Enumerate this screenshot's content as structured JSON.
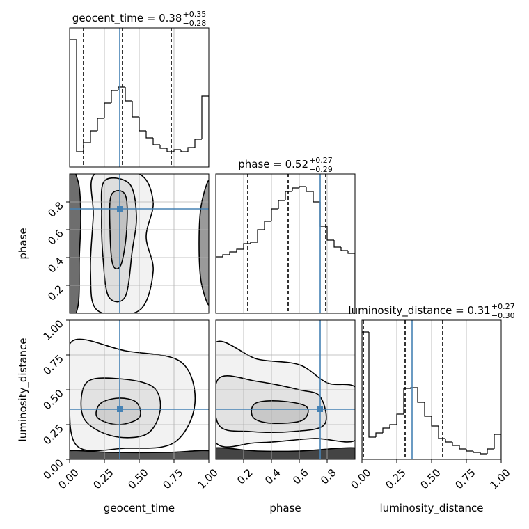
{
  "chart_data": {
    "type": "corner",
    "grid": true,
    "truth_color": "#4682b4",
    "parameters": [
      {
        "name": "geocent_time",
        "xlim": [
          0,
          1
        ],
        "truth": 0.36,
        "ticks": [
          {
            "value": 0,
            "label": "0.00"
          },
          {
            "value": 0.25,
            "label": "0.25"
          },
          {
            "value": 0.5,
            "label": "0.50"
          },
          {
            "value": 0.75,
            "label": "0.75"
          },
          {
            "value": 1,
            "label": "1.00"
          }
        ]
      },
      {
        "name": "phase",
        "xlim": [
          0,
          1
        ],
        "truth": 0.75,
        "ticks": [
          0.2,
          0.4,
          0.6,
          0.8
        ]
      },
      {
        "name": "luminosity_distance",
        "xlim": [
          0,
          1
        ],
        "truth": 0.36,
        "ticks": [
          {
            "value": 0,
            "label": "0.00"
          },
          {
            "value": 0.25,
            "label": "0.25"
          },
          {
            "value": 0.5,
            "label": "0.50"
          },
          {
            "value": 0.75,
            "label": "0.75"
          },
          {
            "value": 1,
            "label": "1.00"
          }
        ]
      }
    ],
    "histograms": [
      {
        "title": "geocent_time = 0.38",
        "sup": "+0.35",
        "sub": "−0.28",
        "ylim": [
          0,
          200
        ],
        "bins": [
          0,
          0.05,
          0.1,
          0.15,
          0.2,
          0.25,
          0.3,
          0.35,
          0.4,
          0.45,
          0.5,
          0.55,
          0.6,
          0.65,
          0.7,
          0.75,
          0.8,
          0.85,
          0.9,
          0.95,
          1
        ],
        "counts": [
          183,
          22,
          35,
          52,
          70,
          92,
          110,
          115,
          95,
          72,
          52,
          42,
          32,
          27,
          22,
          25,
          22,
          28,
          40,
          102
        ],
        "quantiles": [
          0.1,
          0.38,
          0.73
        ]
      },
      {
        "title": "phase = 0.52",
        "sup": "+0.27",
        "sub": "−0.29",
        "ylim": [
          0,
          200
        ],
        "bins": [
          0,
          0.05,
          0.1,
          0.15,
          0.2,
          0.25,
          0.3,
          0.35,
          0.4,
          0.45,
          0.5,
          0.55,
          0.6,
          0.65,
          0.7,
          0.75,
          0.8,
          0.85,
          0.9,
          0.95,
          1
        ],
        "counts": [
          81,
          84,
          88,
          92,
          100,
          102,
          120,
          132,
          150,
          162,
          175,
          180,
          182,
          175,
          160,
          125,
          105,
          95,
          90,
          86
        ],
        "quantiles": [
          0.23,
          0.52,
          0.79
        ]
      },
      {
        "title": "luminosity_distance = 0.31",
        "sup": "+0.27",
        "sub": "−0.30",
        "ylim": [
          0,
          200
        ],
        "bins": [
          0,
          0.05,
          0.1,
          0.15,
          0.2,
          0.25,
          0.3,
          0.35,
          0.4,
          0.45,
          0.5,
          0.55,
          0.6,
          0.65,
          0.7,
          0.75,
          0.8,
          0.85,
          0.9,
          0.95,
          1
        ],
        "counts": [
          183,
          32,
          38,
          45,
          50,
          65,
          102,
          103,
          82,
          62,
          48,
          30,
          25,
          20,
          15,
          12,
          10,
          8,
          15,
          36
        ],
        "quantiles": [
          0.01,
          0.31,
          0.58
        ]
      }
    ],
    "panels": [
      {
        "x": 0,
        "y": 1,
        "contours": [
          {
            "color": "#f2f2f2",
            "x": [
              0.18,
              0.5,
              0.6,
              0.55,
              0.6,
              0.5,
              0.2,
              0.15,
              0.17
            ],
            "y": [
              1.0,
              1.0,
              0.8,
              0.55,
              0.3,
              0.02,
              0.02,
              0.3,
              0.7
            ]
          },
          {
            "color": "#dedede",
            "x": [
              0.25,
              0.43,
              0.48,
              0.45,
              0.4,
              0.28,
              0.24,
              0.23
            ],
            "y": [
              0.95,
              0.93,
              0.7,
              0.45,
              0.12,
              0.12,
              0.4,
              0.7
            ]
          },
          {
            "color": "#c2c2c2",
            "x": [
              0.3,
              0.4,
              0.41,
              0.37,
              0.31,
              0.29
            ],
            "y": [
              0.85,
              0.85,
              0.6,
              0.35,
              0.35,
              0.6
            ]
          },
          {
            "color": "#6e6e6e",
            "x": [
              -0.02,
              0.06,
              0.08,
              0.07,
              0.06,
              -0.02
            ],
            "y": [
              1.02,
              0.95,
              0.7,
              0.4,
              0.05,
              -0.02
            ]
          },
          {
            "color": "#9a9a9a",
            "x": [
              1.02,
              0.95,
              0.93,
              0.95,
              1.02
            ],
            "y": [
              0.92,
              0.8,
              0.5,
              0.2,
              0.1
            ]
          }
        ]
      },
      {
        "x": 0,
        "y": 2,
        "contours": [
          {
            "color": "#f2f2f2",
            "x": [
              0.02,
              0.4,
              0.8,
              0.9,
              0.75,
              0.4,
              0.05,
              0.0
            ],
            "y": [
              0.85,
              0.78,
              0.7,
              0.4,
              0.12,
              0.08,
              0.1,
              0.5
            ]
          },
          {
            "color": "#e2e2e2",
            "x": [
              0.12,
              0.35,
              0.6,
              0.65,
              0.55,
              0.3,
              0.1
            ],
            "y": [
              0.55,
              0.58,
              0.52,
              0.35,
              0.18,
              0.17,
              0.3
            ]
          },
          {
            "color": "#cfcfcf",
            "x": [
              0.22,
              0.35,
              0.48,
              0.5,
              0.35,
              0.2
            ],
            "y": [
              0.4,
              0.44,
              0.41,
              0.3,
              0.25,
              0.3
            ]
          },
          {
            "color": "#555555",
            "x": [
              -0.02,
              0.3,
              0.7,
              1.02,
              1.02,
              -0.02
            ],
            "y": [
              0.06,
              0.05,
              0.05,
              0.06,
              -0.02,
              -0.02
            ]
          }
        ]
      },
      {
        "x": 1,
        "y": 2,
        "contours": [
          {
            "color": "#f2f2f2",
            "x": [
              -0.02,
              0.3,
              0.6,
              0.8,
              1.02,
              1.02,
              0.7,
              0.3,
              -0.02
            ],
            "y": [
              0.82,
              0.72,
              0.68,
              0.55,
              0.5,
              0.15,
              0.15,
              0.12,
              0.15
            ]
          },
          {
            "color": "#e2e2e2",
            "x": [
              0.02,
              0.3,
              0.6,
              0.75,
              0.78,
              0.55,
              0.25,
              0.02
            ],
            "y": [
              0.58,
              0.56,
              0.5,
              0.45,
              0.25,
              0.2,
              0.2,
              0.25
            ]
          },
          {
            "color": "#c8c8c8",
            "x": [
              0.28,
              0.45,
              0.65,
              0.62,
              0.4,
              0.27
            ],
            "y": [
              0.4,
              0.42,
              0.38,
              0.28,
              0.26,
              0.3
            ]
          },
          {
            "color": "#444444",
            "x": [
              -0.02,
              0.3,
              0.6,
              1.02,
              1.02,
              -0.02
            ],
            "y": [
              0.08,
              0.06,
              0.06,
              0.08,
              -0.02,
              -0.02
            ]
          }
        ]
      }
    ]
  }
}
